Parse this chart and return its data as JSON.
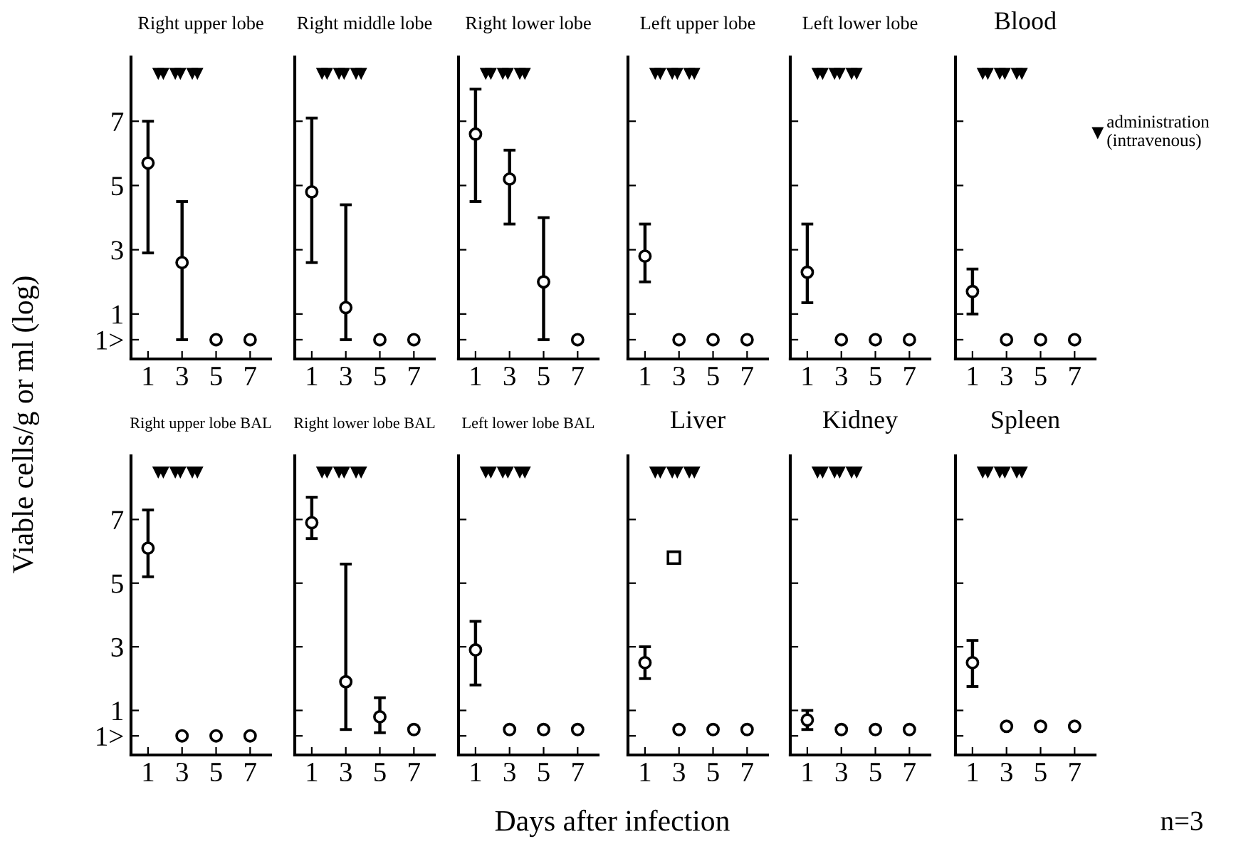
{
  "chart_data": [
    {
      "type": "scatter",
      "title": "Right upper lobe",
      "x": [
        1,
        3,
        5,
        7
      ],
      "xlim": [
        0,
        8.2
      ],
      "ylim": [
        -0.4,
        9
      ],
      "xticks": [
        1,
        3,
        5,
        7
      ],
      "yticks": [
        {
          "value": 0.2,
          "label": "1>"
        },
        1,
        3,
        5,
        7
      ],
      "grid": false,
      "legend": false,
      "series": [
        {
          "color": "#000000",
          "marker": "circle",
          "values": [
            5.7,
            2.6,
            0.2,
            0.2
          ],
          "errors": [
            [
              2.9,
              7.0
            ],
            [
              0.2,
              4.5
            ],
            null,
            null
          ]
        },
        {
          "color": "#000000",
          "marker": "triangle",
          "x": [
            1.6,
            1.9,
            2.6,
            2.9,
            3.6,
            3.9
          ],
          "values": [
            8.5,
            8.5,
            8.5,
            8.5,
            8.5,
            8.5
          ]
        }
      ]
    },
    {
      "type": "scatter",
      "title": "Right middle lobe",
      "x": [
        1,
        3,
        5,
        7
      ],
      "xlim": [
        0,
        8.2
      ],
      "ylim": [
        -0.4,
        9
      ],
      "xticks": [
        1,
        3,
        5,
        7
      ],
      "yticks": [
        0.2,
        1,
        3,
        5,
        7
      ],
      "tick_labels": "x",
      "grid": false,
      "legend": false,
      "series": [
        {
          "color": "#000000",
          "marker": "circle",
          "values": [
            4.8,
            1.2,
            0.2,
            0.2
          ],
          "errors": [
            [
              2.6,
              7.1
            ],
            [
              0.2,
              4.4
            ],
            null,
            null
          ]
        },
        {
          "color": "#000000",
          "marker": "triangle",
          "x": [
            1.6,
            1.9,
            2.6,
            2.9,
            3.6,
            3.9
          ],
          "values": [
            8.5,
            8.5,
            8.5,
            8.5,
            8.5,
            8.5
          ]
        }
      ]
    },
    {
      "type": "scatter",
      "title": "Right lower lobe",
      "x": [
        1,
        3,
        5,
        7
      ],
      "xlim": [
        0,
        8.2
      ],
      "ylim": [
        -0.4,
        9
      ],
      "xticks": [
        1,
        3,
        5,
        7
      ],
      "yticks": [
        0.2,
        1,
        3,
        5,
        7
      ],
      "tick_labels": "x",
      "grid": false,
      "legend": false,
      "series": [
        {
          "color": "#000000",
          "marker": "circle",
          "values": [
            6.6,
            5.2,
            2.0,
            0.2
          ],
          "errors": [
            [
              4.5,
              8.0
            ],
            [
              3.8,
              6.1
            ],
            [
              0.2,
              4.0
            ],
            null
          ]
        },
        {
          "color": "#000000",
          "marker": "triangle",
          "x": [
            1.6,
            1.9,
            2.6,
            2.9,
            3.6,
            3.9
          ],
          "values": [
            8.5,
            8.5,
            8.5,
            8.5,
            8.5,
            8.5
          ]
        }
      ]
    },
    {
      "type": "scatter",
      "title": "Left upper lobe",
      "x": [
        1,
        3,
        5,
        7
      ],
      "xlim": [
        0,
        8.2
      ],
      "ylim": [
        -0.4,
        9
      ],
      "xticks": [
        1,
        3,
        5,
        7
      ],
      "yticks": [
        0.2,
        1,
        3,
        5,
        7
      ],
      "tick_labels": "x",
      "grid": false,
      "legend": false,
      "series": [
        {
          "color": "#000000",
          "marker": "circle",
          "values": [
            2.8,
            0.2,
            0.2,
            0.2
          ],
          "errors": [
            [
              2.0,
              3.8
            ],
            null,
            null,
            null
          ]
        },
        {
          "color": "#000000",
          "marker": "triangle",
          "x": [
            1.6,
            1.9,
            2.6,
            2.9,
            3.6,
            3.9
          ],
          "values": [
            8.5,
            8.5,
            8.5,
            8.5,
            8.5,
            8.5
          ]
        }
      ]
    },
    {
      "type": "scatter",
      "title": "Left lower lobe",
      "x": [
        1,
        3,
        5,
        7
      ],
      "xlim": [
        0,
        8.2
      ],
      "ylim": [
        -0.4,
        9
      ],
      "xticks": [
        1,
        3,
        5,
        7
      ],
      "yticks": [
        0.2,
        1,
        3,
        5,
        7
      ],
      "tick_labels": "x",
      "grid": false,
      "legend": false,
      "series": [
        {
          "color": "#000000",
          "marker": "circle",
          "values": [
            2.3,
            0.2,
            0.2,
            0.2
          ],
          "errors": [
            [
              1.35,
              3.8
            ],
            null,
            null,
            null
          ]
        },
        {
          "color": "#000000",
          "marker": "triangle",
          "x": [
            1.6,
            1.9,
            2.6,
            2.9,
            3.6,
            3.9
          ],
          "values": [
            8.5,
            8.5,
            8.5,
            8.5,
            8.5,
            8.5
          ]
        }
      ]
    },
    {
      "type": "scatter",
      "title": "Blood",
      "x": [
        1,
        3,
        5,
        7
      ],
      "xlim": [
        0,
        8.2
      ],
      "ylim": [
        -0.4,
        9
      ],
      "xticks": [
        1,
        3,
        5,
        7
      ],
      "yticks": [
        0.2,
        1,
        3,
        5,
        7
      ],
      "tick_labels": "x",
      "grid": false,
      "legend": "right",
      "series": [
        {
          "color": "#000000",
          "marker": "circle",
          "values": [
            1.7,
            0.2,
            0.2,
            0.2
          ],
          "errors": [
            [
              1.0,
              2.4
            ],
            null,
            null,
            null
          ]
        },
        {
          "name": "administration\n(intravenous)",
          "color": "#000000",
          "marker": "triangle",
          "x": [
            1.6,
            1.9,
            2.6,
            2.9,
            3.6,
            3.9
          ],
          "values": [
            8.5,
            8.5,
            8.5,
            8.5,
            8.5,
            8.5
          ]
        }
      ]
    },
    {
      "type": "scatter",
      "title": "Right upper lobe BAL",
      "annotations": [
        "Viable cells/g or ml (log)",
        "Days after infection"
      ],
      "x": [
        1,
        3,
        5,
        7
      ],
      "xlim": [
        0,
        8.2
      ],
      "ylim": [
        -0.4,
        9
      ],
      "xticks": [
        1,
        3,
        5,
        7
      ],
      "yticks": [
        {
          "value": 0.2,
          "label": "1>"
        },
        1,
        3,
        5,
        7
      ],
      "grid": false,
      "legend": false,
      "series": [
        {
          "color": "#000000",
          "marker": "circle",
          "values": [
            6.1,
            0.2,
            0.2,
            0.2
          ],
          "errors": [
            [
              5.2,
              7.3
            ],
            null,
            null,
            null
          ]
        },
        {
          "color": "#000000",
          "marker": "triangle",
          "x": [
            1.6,
            1.9,
            2.6,
            2.9,
            3.6,
            3.9
          ],
          "values": [
            8.5,
            8.5,
            8.5,
            8.5,
            8.5,
            8.5
          ]
        }
      ]
    },
    {
      "type": "scatter",
      "title": "Right lower lobe BAL",
      "x": [
        1,
        3,
        5,
        7
      ],
      "xlim": [
        0,
        8.2
      ],
      "ylim": [
        -0.4,
        9
      ],
      "xticks": [
        1,
        3,
        5,
        7
      ],
      "yticks": [
        0.2,
        1,
        3,
        5,
        7
      ],
      "tick_labels": "x",
      "grid": false,
      "legend": false,
      "series": [
        {
          "color": "#000000",
          "marker": "circle",
          "values": [
            6.9,
            1.9,
            0.8,
            0.4
          ],
          "errors": [
            [
              6.4,
              7.7
            ],
            [
              0.4,
              5.6
            ],
            [
              0.3,
              1.4
            ],
            null
          ]
        },
        {
          "color": "#000000",
          "marker": "triangle",
          "x": [
            1.6,
            1.9,
            2.6,
            2.9,
            3.6,
            3.9
          ],
          "values": [
            8.5,
            8.5,
            8.5,
            8.5,
            8.5,
            8.5
          ]
        }
      ]
    },
    {
      "type": "scatter",
      "title": "Left lower lobe BAL",
      "x": [
        1,
        3,
        5,
        7
      ],
      "xlim": [
        0,
        8.2
      ],
      "ylim": [
        -0.4,
        9
      ],
      "xticks": [
        1,
        3,
        5,
        7
      ],
      "yticks": [
        0.2,
        1,
        3,
        5,
        7
      ],
      "tick_labels": "x",
      "grid": false,
      "legend": false,
      "series": [
        {
          "color": "#000000",
          "marker": "circle",
          "values": [
            2.9,
            0.4,
            0.4,
            0.4
          ],
          "errors": [
            [
              1.8,
              3.8
            ],
            null,
            null,
            null
          ]
        },
        {
          "color": "#000000",
          "marker": "triangle",
          "x": [
            1.6,
            1.9,
            2.6,
            2.9,
            3.6,
            3.9
          ],
          "values": [
            8.5,
            8.5,
            8.5,
            8.5,
            8.5,
            8.5
          ]
        }
      ]
    },
    {
      "type": "scatter",
      "title": "Liver",
      "x": [
        1,
        3,
        5,
        7
      ],
      "xlim": [
        0,
        8.2
      ],
      "ylim": [
        -0.4,
        9
      ],
      "xticks": [
        1,
        3,
        5,
        7
      ],
      "yticks": [
        0.2,
        1,
        3,
        5,
        7
      ],
      "tick_labels": "x",
      "grid": false,
      "legend": false,
      "series": [
        {
          "color": "#000000",
          "marker": "circle",
          "values": [
            2.5,
            0.4,
            0.4,
            0.4
          ],
          "errors": [
            [
              2.0,
              3.0
            ],
            null,
            null,
            null
          ]
        },
        {
          "color": "#000000",
          "marker": "square",
          "x": [
            2.7
          ],
          "values": [
            5.8
          ]
        },
        {
          "color": "#000000",
          "marker": "triangle",
          "x": [
            1.6,
            1.9,
            2.6,
            2.9,
            3.6,
            3.9
          ],
          "values": [
            8.5,
            8.5,
            8.5,
            8.5,
            8.5,
            8.5
          ]
        }
      ]
    },
    {
      "type": "scatter",
      "title": "Kidney",
      "x": [
        1,
        3,
        5,
        7
      ],
      "xlim": [
        0,
        8.2
      ],
      "ylim": [
        -0.4,
        9
      ],
      "xticks": [
        1,
        3,
        5,
        7
      ],
      "yticks": [
        0.2,
        1,
        3,
        5,
        7
      ],
      "tick_labels": "x",
      "grid": false,
      "legend": false,
      "series": [
        {
          "color": "#000000",
          "marker": "circle",
          "values": [
            0.7,
            0.4,
            0.4,
            0.4
          ],
          "errors": [
            [
              0.4,
              1.0
            ],
            null,
            null,
            null
          ]
        },
        {
          "color": "#000000",
          "marker": "triangle",
          "x": [
            1.6,
            1.9,
            2.6,
            2.9,
            3.6,
            3.9
          ],
          "values": [
            8.5,
            8.5,
            8.5,
            8.5,
            8.5,
            8.5
          ]
        }
      ]
    },
    {
      "type": "scatter",
      "title": "Spleen",
      "annotations": [
        "n=3"
      ],
      "x": [
        1,
        3,
        5,
        7
      ],
      "xlim": [
        0,
        8.2
      ],
      "ylim": [
        -0.4,
        9
      ],
      "xticks": [
        1,
        3,
        5,
        7
      ],
      "yticks": [
        0.2,
        1,
        3,
        5,
        7
      ],
      "tick_labels": "x",
      "grid": false,
      "legend": false,
      "series": [
        {
          "color": "#000000",
          "marker": "circle",
          "values": [
            2.5,
            0.5,
            0.5,
            0.5
          ],
          "errors": [
            [
              1.75,
              3.2
            ],
            null,
            null,
            null
          ]
        },
        {
          "color": "#000000",
          "marker": "triangle",
          "x": [
            1.6,
            1.9,
            2.6,
            2.9,
            3.6,
            3.9
          ],
          "values": [
            8.5,
            8.5,
            8.5,
            8.5,
            8.5,
            8.5
          ]
        }
      ]
    }
  ]
}
